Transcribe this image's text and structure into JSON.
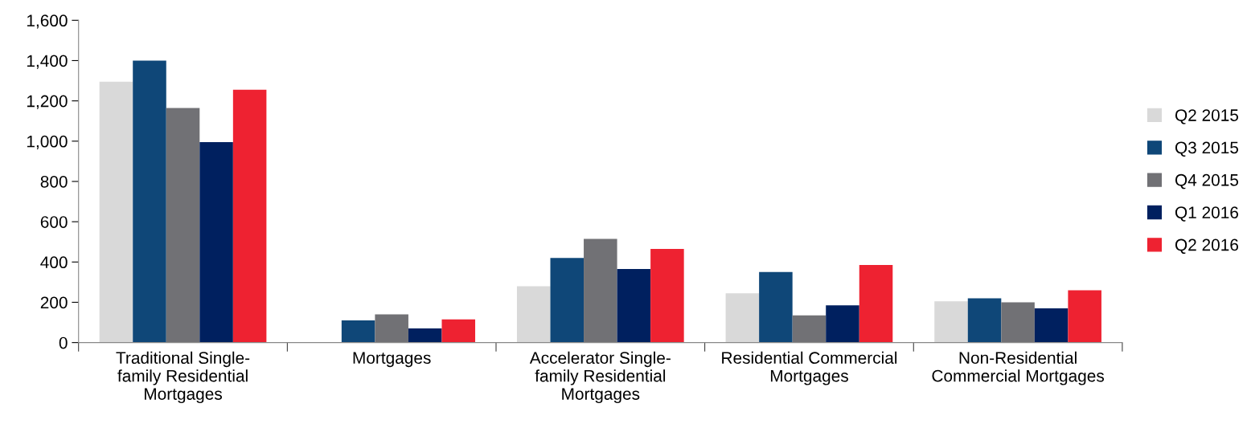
{
  "chart_data": {
    "type": "bar",
    "categories": [
      "Traditional Single-\nfamily Residential\nMortgages",
      "Mortgages",
      "Accelerator Single-\nfamily Residential\nMortgages",
      "Residential Commercial\nMortgages",
      "Non-Residential\nCommercial Mortgages"
    ],
    "series": [
      {
        "name": "Q2 2015",
        "color": "#d9d9d9",
        "values": [
          1295,
          0,
          280,
          245,
          205
        ]
      },
      {
        "name": "Q3 2015",
        "color": "#0f4778",
        "values": [
          1400,
          110,
          420,
          350,
          220
        ]
      },
      {
        "name": "Q4 2015",
        "color": "#717175",
        "values": [
          1165,
          140,
          515,
          135,
          200
        ]
      },
      {
        "name": "Q1 2016",
        "color": "#00205f",
        "values": [
          995,
          70,
          365,
          185,
          170
        ]
      },
      {
        "name": "Q2 2016",
        "color": "#ee2231",
        "values": [
          1255,
          115,
          465,
          385,
          260
        ]
      }
    ],
    "ylim": [
      0,
      1600
    ],
    "yticks": [
      {
        "value": 0,
        "label": "0"
      },
      {
        "value": 200,
        "label": "200"
      },
      {
        "value": 400,
        "label": "400"
      },
      {
        "value": 600,
        "label": "600"
      },
      {
        "value": 800,
        "label": "800"
      },
      {
        "value": 1000,
        "label": "1,000"
      },
      {
        "value": 1200,
        "label": "1,200"
      },
      {
        "value": 1400,
        "label": "1,400"
      },
      {
        "value": 1600,
        "label": "1,600"
      }
    ],
    "grid": false,
    "legend": "right"
  }
}
